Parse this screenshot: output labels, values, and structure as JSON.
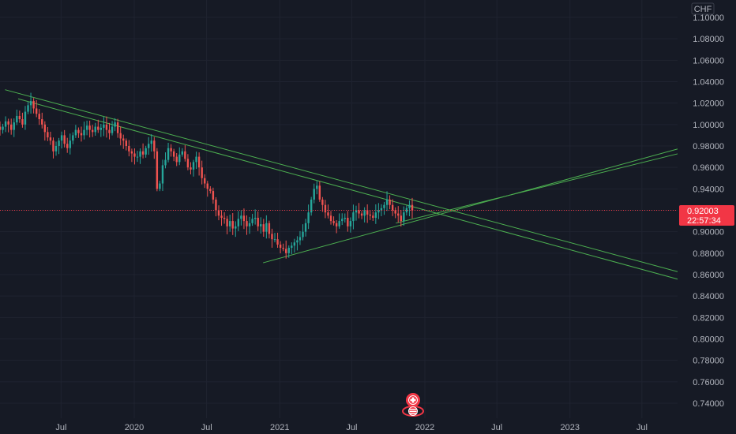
{
  "chart_data": {
    "type": "candlestick",
    "symbol_currency": "CHF",
    "y_axis_ticks": [
      "1.10000",
      "1.08000",
      "1.06000",
      "1.04000",
      "1.02000",
      "1.00000",
      "0.98000",
      "0.96000",
      "0.94000",
      "0.92000",
      "0.90000",
      "0.88000",
      "0.86000",
      "0.84000",
      "0.82000",
      "0.80000",
      "0.78000",
      "0.76000",
      "0.74000"
    ],
    "ylim": [
      0.725,
      1.112
    ],
    "x_axis_ticks": [
      "Jul",
      "2020",
      "Jul",
      "2021",
      "Jul",
      "2022",
      "Jul",
      "2023",
      "Jul"
    ],
    "xlim": [
      "2019-02-10",
      "2023-11-15"
    ],
    "last_price": "0.92003",
    "countdown": "22:57:34",
    "grid": true,
    "colors": {
      "up": "#26a69a",
      "down": "#ef5350",
      "trendline": "#4caf50",
      "background": "#161a25",
      "last_price": "#f23645"
    },
    "trendlines": [
      {
        "from": [
          "2019-02-10",
          1.0325
        ],
        "to": [
          "2023-11-15",
          0.858
        ]
      },
      {
        "from": [
          "2019-03-15",
          1.024
        ],
        "to": [
          "2023-11-15",
          0.851
        ]
      },
      {
        "from": [
          "2020-11-20",
          0.871
        ],
        "to": [
          "2023-11-15",
          0.982
        ]
      },
      {
        "from": [
          "2021-10-20",
          0.908
        ],
        "to": [
          "2023-11-15",
          0.977
        ]
      }
    ],
    "weekly_closes": [
      [
        0.995,
        0.998,
        1.003,
        1.0,
        0.995,
        1.002,
        1.008,
        1.005,
        1.0,
        1.012,
        1.018,
        1.022,
        1.015,
        1.01,
        1.005,
        1.0
      ],
      [
        0.993,
        0.988,
        0.985,
        0.975,
        0.98,
        0.985,
        0.99,
        0.982,
        0.978,
        0.985,
        0.99,
        0.995,
        0.992,
        0.99,
        0.995,
        0.999
      ],
      [
        0.995,
        0.993,
        0.998,
        0.995,
        0.997,
        1.0,
        0.995,
        0.992,
        0.998,
        1.002,
        0.992,
        0.987,
        0.985,
        0.98,
        0.975,
        0.973
      ],
      [
        0.97,
        0.97,
        0.975,
        0.972,
        0.978,
        0.982,
        0.985,
        0.975,
        0.94,
        0.945,
        0.962,
        0.967,
        0.978,
        0.975,
        0.97,
        0.965
      ],
      [
        0.972,
        0.975,
        0.968,
        0.96,
        0.958,
        0.965,
        0.97,
        0.96,
        0.95,
        0.945,
        0.94,
        0.938,
        0.93,
        0.92,
        0.915,
        0.913
      ],
      [
        0.912,
        0.905,
        0.91,
        0.903,
        0.905,
        0.912,
        0.915,
        0.91,
        0.905,
        0.908,
        0.912,
        0.913,
        0.905,
        0.907,
        0.9,
        0.908
      ],
      [
        0.898,
        0.893,
        0.893,
        0.888,
        0.885,
        0.884,
        0.88,
        0.885,
        0.887,
        0.89,
        0.892,
        0.895,
        0.9,
        0.908,
        0.918,
        0.93
      ],
      [
        0.94,
        0.943,
        0.93,
        0.925,
        0.918,
        0.915,
        0.91,
        0.908,
        0.905,
        0.91,
        0.912,
        0.913,
        0.905,
        0.91,
        0.918,
        0.92
      ],
      [
        0.917,
        0.915,
        0.92,
        0.916,
        0.915,
        0.913,
        0.918,
        0.92,
        0.922,
        0.925,
        0.93,
        0.925,
        0.92,
        0.917,
        0.915,
        0.91
      ],
      [
        0.918,
        0.922,
        0.925,
        0.92
      ]
    ]
  }
}
